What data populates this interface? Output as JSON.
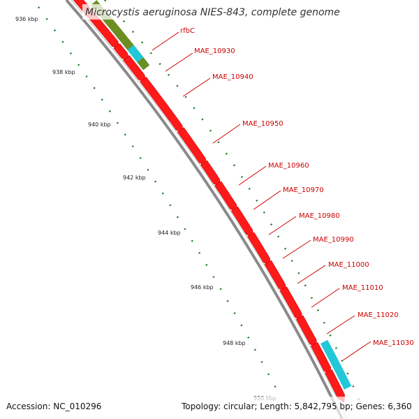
{
  "title": "Microcystis aeruginosa NIES-843, complete genome",
  "footer": {
    "accession": "Accession: NC_010296",
    "summary": "Topology: circular; Length: 5,842,795 bp; Genes: 6,360"
  },
  "ticks": [
    {
      "label": "936 kbp"
    },
    {
      "label": "938 kbp"
    },
    {
      "label": "940 kbp"
    },
    {
      "label": "942 kbp"
    },
    {
      "label": "944 kbp"
    },
    {
      "label": "946 kbp"
    },
    {
      "label": "948 kbp"
    },
    {
      "label": "950 kbp"
    }
  ],
  "gene_labels": [
    {
      "label": "rfbC"
    },
    {
      "label": "MAE_10930"
    },
    {
      "label": "MAE_10940"
    },
    {
      "label": "MAE_10950"
    },
    {
      "label": "MAE_10960"
    },
    {
      "label": "MAE_10970"
    },
    {
      "label": "MAE_10980"
    },
    {
      "label": "MAE_10990"
    },
    {
      "label": "MAE_11000"
    },
    {
      "label": "MAE_11010"
    },
    {
      "label": "MAE_11020"
    },
    {
      "label": "MAE_11030"
    }
  ],
  "colors": {
    "gene": "#ff1a1a",
    "gene_dark": "#cc0000",
    "olive": "#6b8e23",
    "cyan": "#22c8d8",
    "backbone": "#8a8a8a",
    "tick": "#1f7a1f",
    "label": "#cc0000"
  }
}
